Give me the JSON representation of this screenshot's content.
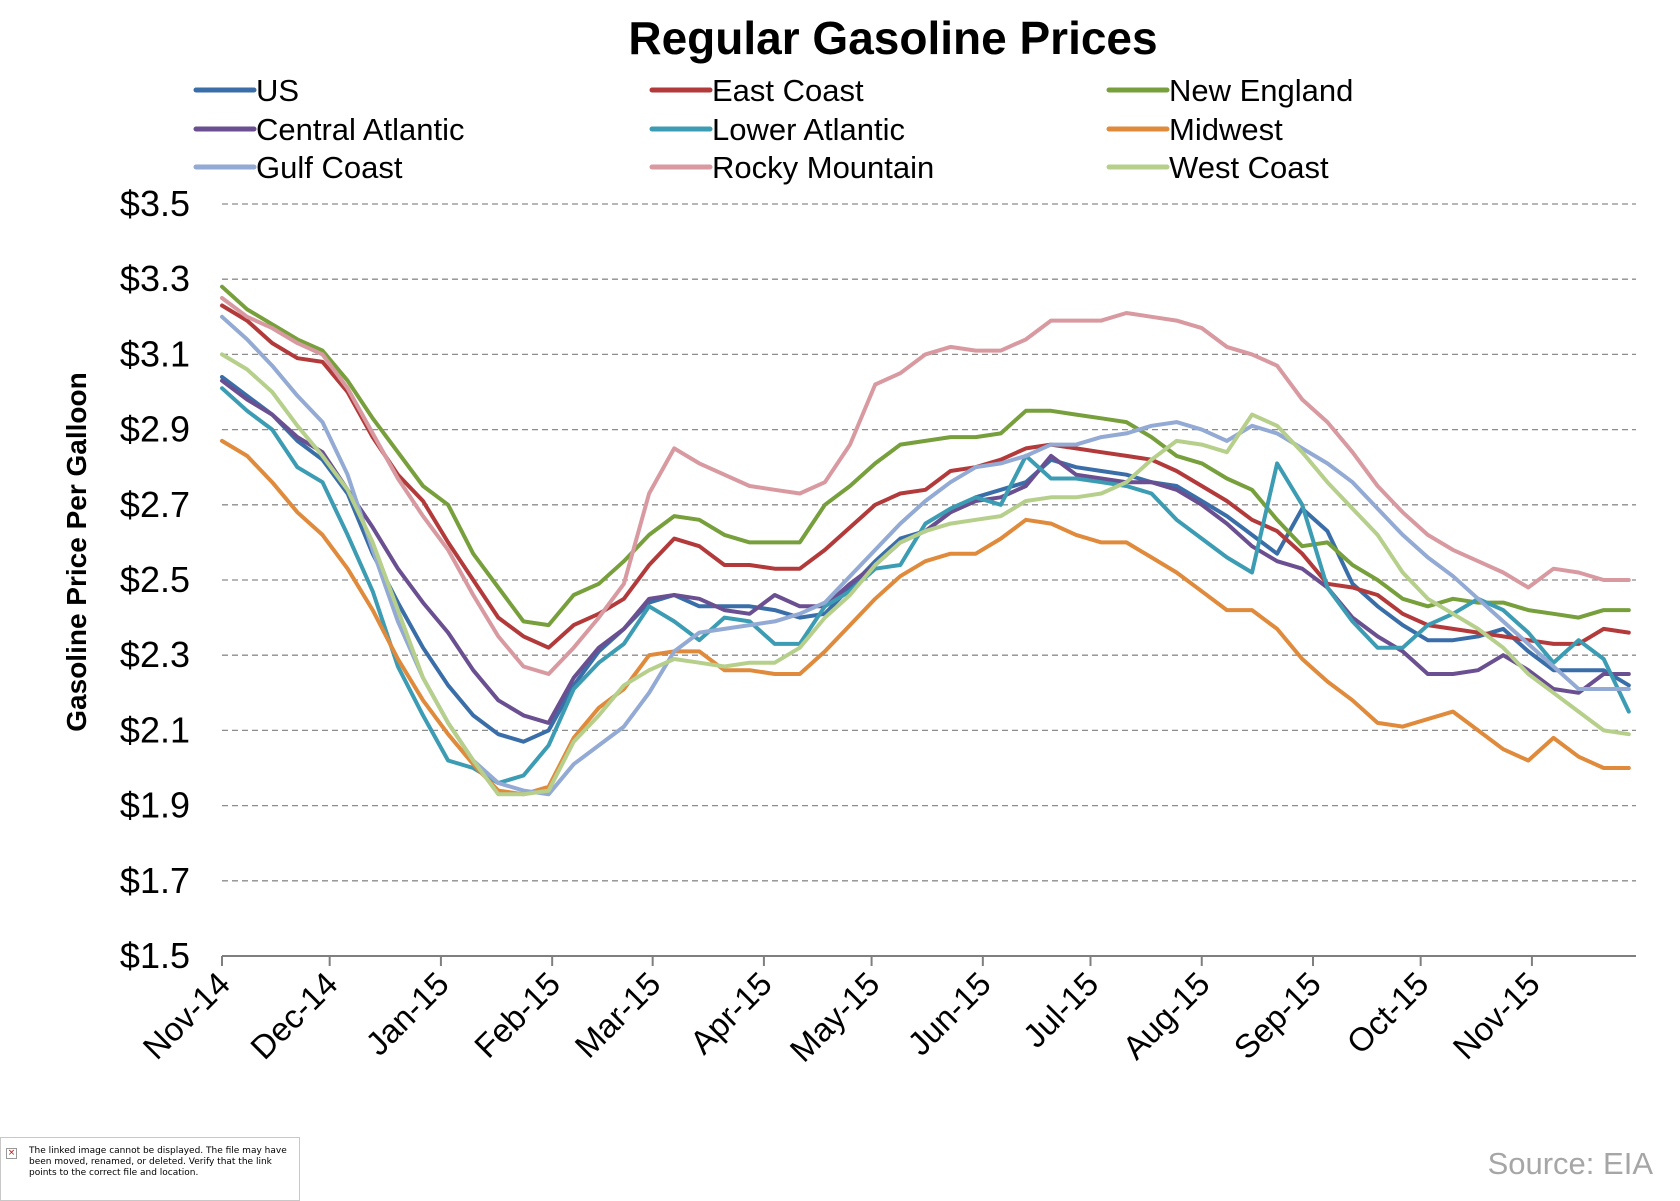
{
  "chart_data": {
    "type": "line",
    "title": "Regular Gasoline Prices",
    "ylabel": "Gasoline Price Per Galloon",
    "xlabel": "",
    "ylim": [
      1.5,
      3.5
    ],
    "yticks": [
      1.5,
      1.7,
      1.9,
      2.1,
      2.3,
      2.5,
      2.7,
      2.9,
      3.1,
      3.3,
      3.5
    ],
    "ytick_labels": [
      "$1.5",
      "$1.7",
      "$1.9",
      "$2.1",
      "$2.3",
      "$2.5",
      "$2.7",
      "$2.9",
      "$3.1",
      "$3.3",
      "$3.5"
    ],
    "xlim": [
      "2014-11-01",
      "2015-11-30"
    ],
    "xticks": [
      "2014-11-01",
      "2014-12-01",
      "2015-01-01",
      "2015-02-01",
      "2015-03-01",
      "2015-04-01",
      "2015-05-01",
      "2015-06-01",
      "2015-07-01",
      "2015-08-01",
      "2015-09-01",
      "2015-10-01",
      "2015-11-01"
    ],
    "xtick_labels": [
      "Nov-14",
      "Dec-14",
      "Jan-15",
      "Feb-15",
      "Mar-15",
      "Apr-15",
      "May-15",
      "Jun-15",
      "Jul-15",
      "Aug-15",
      "Sep-15",
      "Oct-15",
      "Nov-15"
    ],
    "grid": "horizontal dashed",
    "legend_position": "top",
    "x": [
      "2014-11-01",
      "2014-11-08",
      "2014-11-15",
      "2014-11-22",
      "2014-11-29",
      "2014-12-06",
      "2014-12-13",
      "2014-12-20",
      "2014-12-27",
      "2015-01-03",
      "2015-01-10",
      "2015-01-17",
      "2015-01-24",
      "2015-01-31",
      "2015-02-07",
      "2015-02-14",
      "2015-02-21",
      "2015-02-28",
      "2015-03-07",
      "2015-03-14",
      "2015-03-21",
      "2015-03-28",
      "2015-04-04",
      "2015-04-11",
      "2015-04-18",
      "2015-04-25",
      "2015-05-02",
      "2015-05-09",
      "2015-05-16",
      "2015-05-23",
      "2015-05-30",
      "2015-06-06",
      "2015-06-13",
      "2015-06-20",
      "2015-06-27",
      "2015-07-04",
      "2015-07-11",
      "2015-07-18",
      "2015-07-25",
      "2015-08-01",
      "2015-08-08",
      "2015-08-15",
      "2015-08-22",
      "2015-08-29",
      "2015-09-05",
      "2015-09-12",
      "2015-09-19",
      "2015-09-26",
      "2015-10-03",
      "2015-10-10",
      "2015-10-17",
      "2015-10-24",
      "2015-10-31",
      "2015-11-07",
      "2015-11-14",
      "2015-11-21",
      "2015-11-28"
    ],
    "series": [
      {
        "name": "US",
        "color": "#3a6ea8",
        "values": [
          3.04,
          2.99,
          2.94,
          2.87,
          2.82,
          2.73,
          2.57,
          2.44,
          2.32,
          2.22,
          2.14,
          2.09,
          2.07,
          2.1,
          2.22,
          2.31,
          2.37,
          2.44,
          2.46,
          2.43,
          2.43,
          2.43,
          2.42,
          2.4,
          2.41,
          2.48,
          2.55,
          2.61,
          2.63,
          2.68,
          2.72,
          2.74,
          2.76,
          2.82,
          2.8,
          2.79,
          2.78,
          2.76,
          2.75,
          2.71,
          2.67,
          2.62,
          2.57,
          2.69,
          2.63,
          2.49,
          2.43,
          2.38,
          2.34,
          2.34,
          2.35,
          2.37,
          2.31,
          2.26,
          2.26,
          2.26,
          2.22
        ]
      },
      {
        "name": "East Coast",
        "color": "#b33a3a",
        "values": [
          3.23,
          3.19,
          3.13,
          3.09,
          3.08,
          3.0,
          2.88,
          2.78,
          2.71,
          2.6,
          2.5,
          2.4,
          2.35,
          2.32,
          2.38,
          2.41,
          2.45,
          2.54,
          2.61,
          2.59,
          2.54,
          2.54,
          2.53,
          2.53,
          2.58,
          2.64,
          2.7,
          2.73,
          2.74,
          2.79,
          2.8,
          2.82,
          2.85,
          2.86,
          2.85,
          2.84,
          2.83,
          2.82,
          2.79,
          2.75,
          2.71,
          2.66,
          2.63,
          2.57,
          2.49,
          2.48,
          2.46,
          2.41,
          2.38,
          2.37,
          2.36,
          2.35,
          2.34,
          2.33,
          2.33,
          2.37,
          2.36
        ]
      },
      {
        "name": "New England",
        "color": "#77a03c",
        "values": [
          3.28,
          3.22,
          3.18,
          3.14,
          3.11,
          3.03,
          2.93,
          2.84,
          2.75,
          2.7,
          2.57,
          2.48,
          2.39,
          2.38,
          2.46,
          2.49,
          2.55,
          2.62,
          2.67,
          2.66,
          2.62,
          2.6,
          2.6,
          2.6,
          2.7,
          2.75,
          2.81,
          2.86,
          2.87,
          2.88,
          2.88,
          2.89,
          2.95,
          2.95,
          2.94,
          2.93,
          2.92,
          2.88,
          2.83,
          2.81,
          2.77,
          2.74,
          2.66,
          2.59,
          2.6,
          2.54,
          2.5,
          2.45,
          2.43,
          2.45,
          2.44,
          2.44,
          2.42,
          2.41,
          2.4,
          2.42,
          2.42
        ]
      },
      {
        "name": "Central Atlantic",
        "color": "#6a4f91",
        "values": [
          3.03,
          2.98,
          2.94,
          2.88,
          2.84,
          2.74,
          2.64,
          2.53,
          2.44,
          2.36,
          2.26,
          2.18,
          2.14,
          2.12,
          2.24,
          2.32,
          2.37,
          2.45,
          2.46,
          2.45,
          2.42,
          2.41,
          2.46,
          2.43,
          2.43,
          2.49,
          2.54,
          2.6,
          2.63,
          2.68,
          2.71,
          2.72,
          2.75,
          2.83,
          2.78,
          2.77,
          2.76,
          2.76,
          2.74,
          2.7,
          2.65,
          2.59,
          2.55,
          2.53,
          2.48,
          2.4,
          2.35,
          2.31,
          2.25,
          2.25,
          2.26,
          2.3,
          2.26,
          2.21,
          2.2,
          2.25,
          2.25
        ]
      },
      {
        "name": "Lower Atlantic",
        "color": "#3c9cb3",
        "values": [
          3.01,
          2.95,
          2.9,
          2.8,
          2.76,
          2.62,
          2.47,
          2.27,
          2.14,
          2.02,
          2.0,
          1.96,
          1.98,
          2.06,
          2.21,
          2.28,
          2.33,
          2.43,
          2.39,
          2.34,
          2.4,
          2.39,
          2.33,
          2.33,
          2.43,
          2.47,
          2.53,
          2.54,
          2.65,
          2.69,
          2.72,
          2.7,
          2.83,
          2.77,
          2.77,
          2.76,
          2.75,
          2.73,
          2.66,
          2.61,
          2.56,
          2.52,
          2.81,
          2.7,
          2.48,
          2.39,
          2.32,
          2.32,
          2.38,
          2.41,
          2.45,
          2.42,
          2.36,
          2.28,
          2.34,
          2.29,
          2.15
        ]
      },
      {
        "name": "Midwest",
        "color": "#e08a3c",
        "values": [
          2.87,
          2.83,
          2.76,
          2.68,
          2.62,
          2.53,
          2.42,
          2.29,
          2.18,
          2.09,
          2.01,
          1.94,
          1.93,
          1.95,
          2.08,
          2.16,
          2.21,
          2.3,
          2.31,
          2.31,
          2.26,
          2.26,
          2.25,
          2.25,
          2.31,
          2.38,
          2.45,
          2.51,
          2.55,
          2.57,
          2.57,
          2.61,
          2.66,
          2.65,
          2.62,
          2.6,
          2.6,
          2.56,
          2.52,
          2.47,
          2.42,
          2.42,
          2.37,
          2.29,
          2.23,
          2.18,
          2.12,
          2.11,
          2.13,
          2.15,
          2.1,
          2.05,
          2.02,
          2.08,
          2.03,
          2.0,
          2.0
        ]
      },
      {
        "name": "Gulf Coast",
        "color": "#93aad4",
        "values": [
          3.2,
          3.14,
          3.07,
          2.99,
          2.92,
          2.78,
          2.58,
          2.39,
          2.24,
          2.12,
          2.02,
          1.96,
          1.94,
          1.93,
          2.01,
          2.06,
          2.11,
          2.2,
          2.31,
          2.36,
          2.37,
          2.38,
          2.39,
          2.41,
          2.44,
          2.51,
          2.58,
          2.65,
          2.71,
          2.76,
          2.8,
          2.81,
          2.83,
          2.86,
          2.86,
          2.88,
          2.89,
          2.91,
          2.92,
          2.9,
          2.87,
          2.91,
          2.89,
          2.85,
          2.81,
          2.76,
          2.69,
          2.62,
          2.56,
          2.51,
          2.45,
          2.39,
          2.33,
          2.27,
          2.21,
          2.21,
          2.21
        ]
      },
      {
        "name": "Rocky Mountain",
        "color": "#d89aa0",
        "values": [
          3.25,
          3.2,
          3.17,
          3.13,
          3.1,
          3.01,
          2.89,
          2.77,
          2.67,
          2.58,
          2.46,
          2.35,
          2.27,
          2.25,
          2.32,
          2.4,
          2.49,
          2.73,
          2.85,
          2.81,
          2.78,
          2.75,
          2.74,
          2.73,
          2.76,
          2.86,
          3.02,
          3.05,
          3.1,
          3.12,
          3.11,
          3.11,
          3.14,
          3.19,
          3.19,
          3.19,
          3.21,
          3.2,
          3.19,
          3.17,
          3.12,
          3.1,
          3.07,
          2.98,
          2.92,
          2.84,
          2.75,
          2.68,
          2.62,
          2.58,
          2.55,
          2.52,
          2.48,
          2.53,
          2.52,
          2.5,
          2.5
        ]
      },
      {
        "name": "West Coast",
        "color": "#b6d08c",
        "values": [
          3.1,
          3.06,
          3.0,
          2.91,
          2.83,
          2.74,
          2.6,
          2.42,
          2.24,
          2.12,
          2.02,
          1.93,
          1.93,
          1.94,
          2.07,
          2.14,
          2.22,
          2.26,
          2.29,
          2.28,
          2.27,
          2.28,
          2.28,
          2.32,
          2.4,
          2.46,
          2.54,
          2.6,
          2.63,
          2.65,
          2.66,
          2.67,
          2.71,
          2.72,
          2.72,
          2.73,
          2.76,
          2.82,
          2.87,
          2.86,
          2.84,
          2.94,
          2.91,
          2.84,
          2.76,
          2.69,
          2.62,
          2.52,
          2.45,
          2.41,
          2.37,
          2.32,
          2.25,
          2.2,
          2.15,
          2.1,
          2.09
        ]
      }
    ]
  },
  "source": "Source: EIA",
  "broken_image": {
    "icon": "broken-image-icon",
    "text": "The linked image cannot be displayed.  The file may have been moved, renamed, or deleted. Verify that the link points to the correct file and location."
  }
}
